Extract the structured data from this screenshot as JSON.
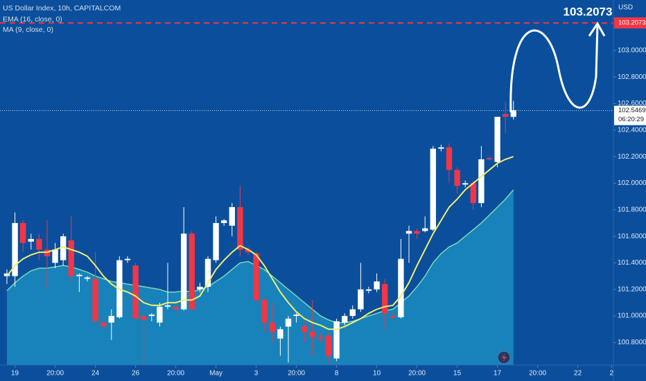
{
  "chart_data": {
    "type": "candlestick",
    "title": "US Dollar Index, 10h, CAPITALCOM",
    "axis_unit": "USD",
    "up_color": "#ffffff",
    "down_color": "#f23645",
    "open": [
      101.3,
      101.3,
      101.7,
      101.56,
      101.58,
      101.5,
      101.4,
      101.42,
      101.57,
      101.3,
      101.28,
      101.28,
      100.95,
      100.95,
      100.99,
      101.42,
      101.38,
      101.0,
      101.0,
      100.95,
      101.07,
      101.07,
      101.05,
      101.62,
      101.2,
      101.22,
      101.42,
      101.7,
      101.68,
      101.82,
      101.5,
      101.47,
      101.12,
      100.95,
      100.83,
      100.92,
      101.0,
      100.92,
      100.88,
      100.84,
      100.85,
      100.68,
      100.95,
      101.0,
      101.05,
      101.19,
      101.2,
      101.24,
      101.0,
      100.99,
      101.62,
      101.64,
      101.64,
      101.65,
      102.26,
      102.27,
      102.1,
      101.99,
      102.0,
      101.85,
      102.19,
      102.16,
      102.52,
      102.5
    ],
    "high": [
      101.35,
      101.78,
      101.72,
      101.62,
      101.62,
      101.72,
      101.55,
      101.62,
      101.75,
      101.32,
      101.3,
      101.48,
      100.98,
      101.05,
      101.45,
      101.45,
      101.4,
      101.02,
      101.02,
      101.1,
      101.4,
      101.1,
      101.82,
      101.64,
      101.25,
      101.45,
      101.75,
      101.73,
      101.85,
      101.98,
      101.52,
      101.48,
      101.14,
      101.1,
      100.92,
      101.0,
      101.02,
      100.96,
      101.12,
      100.87,
      100.88,
      100.98,
      101.02,
      101.08,
      101.4,
      101.22,
      101.32,
      101.28,
      101.02,
      101.58,
      101.68,
      101.66,
      101.75,
      102.28,
      102.29,
      102.3,
      102.12,
      102.02,
      102.02,
      102.28,
      102.2,
      102.5,
      102.62,
      102.62
    ],
    "low": [
      101.24,
      101.22,
      101.48,
      101.5,
      101.42,
      101.2,
      101.36,
      101.38,
      101.25,
      101.18,
      101.26,
      100.95,
      100.9,
      100.82,
      100.98,
      101.4,
      100.95,
      100.63,
      100.96,
      100.92,
      101.05,
      101.0,
      101.04,
      101.04,
      101.18,
      101.18,
      101.4,
      101.68,
      101.6,
      101.45,
      101.46,
      101.1,
      100.88,
      100.8,
      100.7,
      100.65,
      100.95,
      100.8,
      100.7,
      100.8,
      100.65,
      100.66,
      100.93,
      100.98,
      101.03,
      101.17,
      101.18,
      100.9,
      100.98,
      100.98,
      101.4,
      101.58,
      101.63,
      101.64,
      102.24,
      102.0,
      101.92,
      101.97,
      101.8,
      101.82,
      102.17,
      102.12,
      102.38,
      102.48
    ],
    "close": [
      101.32,
      101.7,
      101.55,
      101.58,
      101.5,
      101.45,
      101.5,
      101.6,
      101.3,
      101.31,
      101.29,
      100.96,
      100.92,
      101.0,
      101.42,
      101.43,
      100.98,
      100.97,
      101.01,
      101.07,
      101.08,
      101.05,
      101.62,
      101.05,
      101.22,
      101.43,
      101.7,
      101.72,
      101.82,
      101.5,
      101.48,
      101.12,
      100.95,
      100.88,
      100.9,
      100.98,
      101.01,
      100.88,
      100.84,
      100.83,
      100.7,
      100.96,
      101.0,
      101.05,
      101.2,
      101.2,
      101.26,
      101.02,
      100.99,
      101.43,
      101.64,
      101.62,
      101.66,
      102.26,
      102.27,
      102.1,
      101.98,
      102.0,
      101.85,
      102.18,
      102.18,
      102.5,
      102.5,
      102.55
    ],
    "series": [
      {
        "name": "EMA (16, close, 0)",
        "color": "#7fd8b4",
        "fill": "#1a8cbf",
        "values": [
          101.19,
          101.25,
          101.3,
          101.34,
          101.36,
          101.36,
          101.37,
          101.38,
          101.37,
          101.35,
          101.33,
          101.3,
          101.28,
          101.26,
          101.25,
          101.24,
          101.23,
          101.22,
          101.21,
          101.2,
          101.18,
          101.18,
          101.19,
          101.18,
          101.2,
          101.22,
          101.26,
          101.3,
          101.35,
          101.4,
          101.41,
          101.38,
          101.35,
          101.3,
          101.25,
          101.2,
          101.15,
          101.1,
          101.05,
          101.0,
          100.97,
          100.95,
          100.95,
          100.96,
          100.98,
          101.0,
          101.02,
          101.04,
          101.05,
          101.1,
          101.15,
          101.22,
          101.3,
          101.4,
          101.47,
          101.52,
          101.55,
          101.6,
          101.65,
          101.7,
          101.76,
          101.82,
          101.88,
          101.95
        ]
      },
      {
        "name": "MA (9, close, 0)",
        "color": "#f5ee6a",
        "values": [
          101.3,
          101.38,
          101.43,
          101.46,
          101.48,
          101.48,
          101.5,
          101.52,
          101.5,
          101.48,
          101.45,
          101.38,
          101.3,
          101.24,
          101.2,
          101.18,
          101.15,
          101.1,
          101.08,
          101.08,
          101.1,
          101.1,
          101.12,
          101.12,
          101.15,
          101.25,
          101.35,
          101.42,
          101.48,
          101.53,
          101.5,
          101.46,
          101.38,
          101.28,
          101.18,
          101.1,
          101.03,
          100.98,
          100.95,
          100.93,
          100.9,
          100.9,
          100.92,
          100.95,
          100.98,
          101.02,
          101.05,
          101.07,
          101.08,
          101.15,
          101.25,
          101.38,
          101.5,
          101.62,
          101.72,
          101.82,
          101.88,
          101.95,
          102.0,
          102.05,
          102.1,
          102.15,
          102.18,
          102.2
        ]
      }
    ],
    "ylim": [
      100.63,
      103.38
    ],
    "yticks": [
      {
        "value": 100.8,
        "label": "100.8000"
      },
      {
        "value": 101.0,
        "label": "101.0000"
      },
      {
        "value": 101.2,
        "label": "101.2000"
      },
      {
        "value": 101.4,
        "label": "101.4000"
      },
      {
        "value": 101.6,
        "label": "101.6000"
      },
      {
        "value": 101.8,
        "label": "101.8000"
      },
      {
        "value": 102.0,
        "label": "102.0000"
      },
      {
        "value": 102.2,
        "label": "102.2000"
      },
      {
        "value": 102.4,
        "label": "102.4000"
      },
      {
        "value": 102.6,
        "label": "102.6000"
      },
      {
        "value": 102.8,
        "label": "102.8000"
      },
      {
        "value": 103.0,
        "label": "103.0000"
      }
    ],
    "xlim": [
      -0.86,
      75.43
    ],
    "xticks": [
      {
        "value": 1,
        "label": "19"
      },
      {
        "value": 6,
        "label": "20:00"
      },
      {
        "value": 11,
        "label": "24"
      },
      {
        "value": 16,
        "label": "26"
      },
      {
        "value": 21,
        "label": "20:00"
      },
      {
        "value": 26,
        "label": "May"
      },
      {
        "value": 31,
        "label": "3"
      },
      {
        "value": 36,
        "label": "20:00"
      },
      {
        "value": 41,
        "label": "8"
      },
      {
        "value": 46,
        "label": "10"
      },
      {
        "value": 51,
        "label": "20:00"
      },
      {
        "value": 56,
        "label": "15"
      },
      {
        "value": 61,
        "label": "17"
      },
      {
        "value": 66,
        "label": "20:00"
      },
      {
        "value": 71,
        "label": "22"
      },
      {
        "value": 75.2,
        "label": "2"
      }
    ],
    "target_line": {
      "value": 103.2073,
      "color": "#f23645"
    },
    "current_price": {
      "value": 102.5469,
      "countdown": "06:20:29"
    }
  }
}
